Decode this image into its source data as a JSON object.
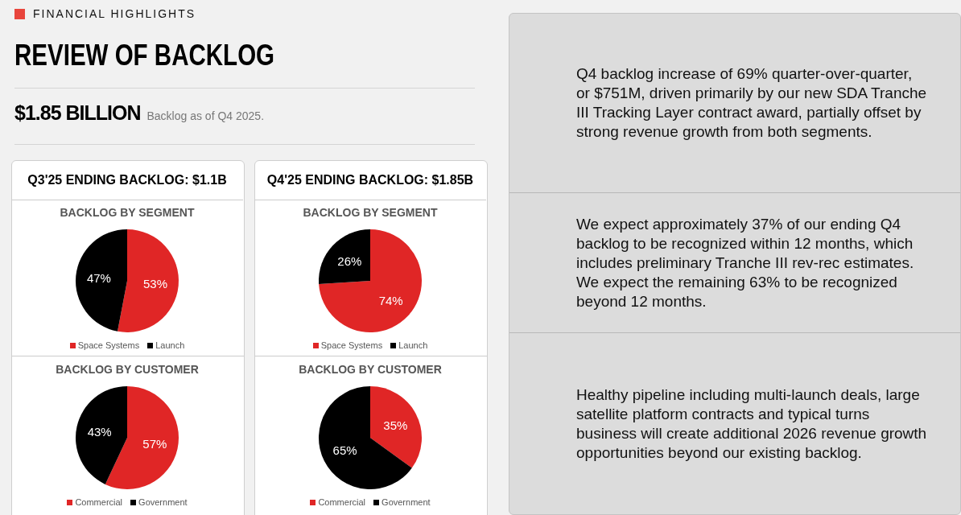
{
  "chart_data": [
    {
      "type": "other",
      "subtitle": "FINANCIAL HIGHLIGHTS",
      "title": "REVIEW OF BACKLOG",
      "annotations": [
        "$1.85 BILLION",
        "Backlog as of Q4 2025."
      ]
    },
    {
      "type": "pie",
      "subtitle": "Q3'25 ENDING BACKLOG: $1.1B",
      "title": "BACKLOG BY SEGMENT",
      "categories": [
        "Space Systems",
        "Launch"
      ],
      "values": [
        53,
        47
      ],
      "value_labels": [
        "53%",
        "47%"
      ],
      "colors": [
        "#e02626",
        "#000000"
      ],
      "legend": "bottom"
    },
    {
      "type": "pie",
      "title": "BACKLOG BY CUSTOMER",
      "categories": [
        "Commercial",
        "Government"
      ],
      "values": [
        57,
        43
      ],
      "value_labels": [
        "57%",
        "43%"
      ],
      "colors": [
        "#e02626",
        "#000000"
      ],
      "legend": "bottom"
    },
    {
      "type": "pie",
      "subtitle": "Q4'25 ENDING BACKLOG: $1.85B",
      "title": "BACKLOG BY SEGMENT",
      "categories": [
        "Space Systems",
        "Launch"
      ],
      "values": [
        74,
        26
      ],
      "value_labels": [
        "74%",
        "26%"
      ],
      "colors": [
        "#e02626",
        "#000000"
      ],
      "legend": "bottom"
    },
    {
      "type": "pie",
      "title": "BACKLOG BY CUSTOMER",
      "categories": [
        "Commercial",
        "Government"
      ],
      "values": [
        35,
        65
      ],
      "value_labels": [
        "35%",
        "65%"
      ],
      "colors": [
        "#e02626",
        "#000000"
      ],
      "legend": "bottom"
    },
    {
      "type": "other",
      "annotations": [
        "Q4 backlog increase of 69% quarter-over-quarter, or $751M, driven primarily by our new SDA Tranche III Tracking Layer contract award, partially offset by strong revenue growth from both segments.",
        "We expect approximately 37% of our ending Q4 backlog to be recognized within 12 months, which includes preliminary Tranche III rev-rec estimates. We expect the remaining 63% to be recognized beyond 12 months.",
        "Healthy pipeline including multi-launch deals, large satellite platform contracts and typical turns business will create additional 2026 revenue growth opportunities beyond our existing backlog."
      ]
    }
  ]
}
